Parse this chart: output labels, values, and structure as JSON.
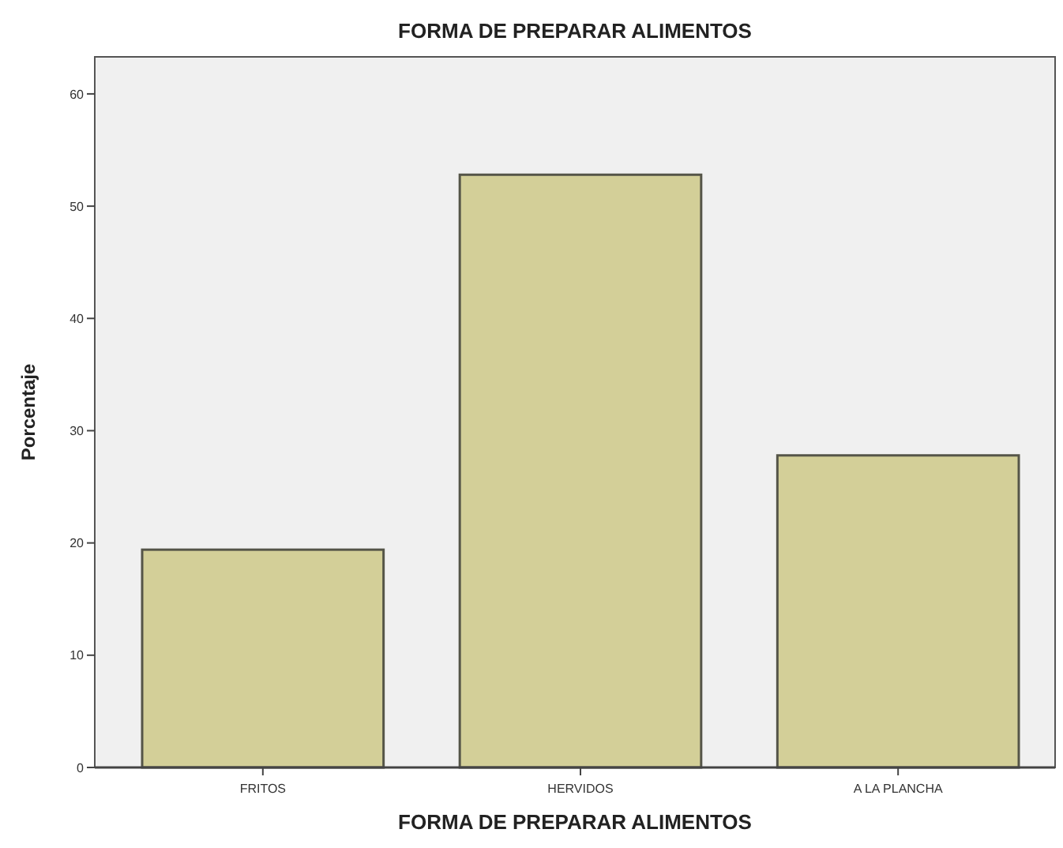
{
  "chart_data": {
    "type": "bar",
    "title": "FORMA DE PREPARAR ALIMENTOS",
    "xlabel": "FORMA DE PREPARAR ALIMENTOS",
    "ylabel": "Porcentaje",
    "categories": [
      "FRITOS",
      "HERVIDOS",
      "A LA PLANCHA"
    ],
    "values": [
      19.4,
      52.8,
      27.8
    ],
    "color": "#d3cf98",
    "ylim": [
      0,
      63.3
    ],
    "yticks": [
      0,
      10,
      20,
      30,
      40,
      50,
      60
    ],
    "grid": false
  }
}
